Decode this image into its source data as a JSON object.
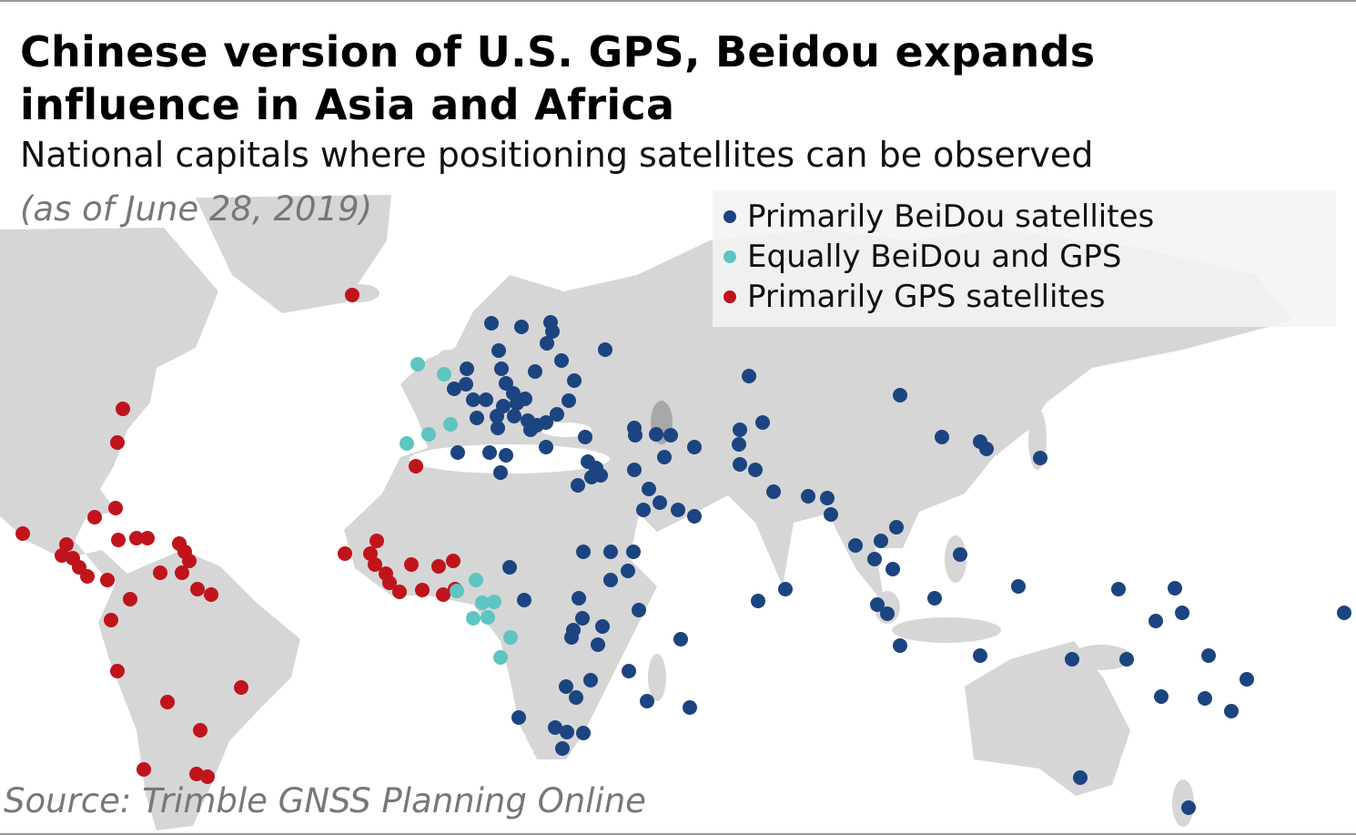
{
  "title_line1": "Chinese version of U.S. GPS, Beidou expands",
  "title_line2": "influence in Asia and Africa",
  "subtitle": "National capitals where positioning satellites can be observed",
  "date_note": "(as of June 28, 2019)",
  "source": "Source: Trimble GNSS Planning Online",
  "legend": [
    {
      "key": "beidou",
      "label": "Primarily BeiDou satellites",
      "color": "#1c4480"
    },
    {
      "key": "equal",
      "label": "Equally BeiDou and GPS",
      "color": "#5ec5c0"
    },
    {
      "key": "gps",
      "label": "Primarily GPS satellites",
      "color": "#c0141c"
    }
  ],
  "colors": {
    "land": "#d6d6d6",
    "water": "#ffffff",
    "caspian": "#a8a8a8"
  }
}
